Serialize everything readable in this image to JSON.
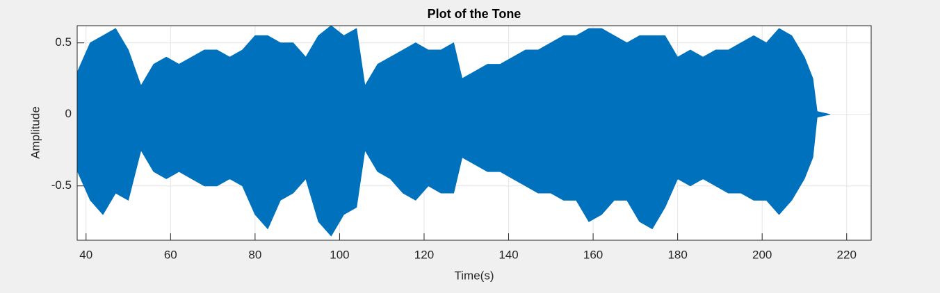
{
  "chart_data": {
    "type": "area",
    "title": "Plot of the Tone",
    "x_label": "Time(s)",
    "y_label": "Amplitude",
    "x": [
      38,
      41,
      44,
      47,
      50,
      53,
      56,
      59,
      62,
      65,
      68,
      71,
      74,
      77,
      80,
      83,
      86,
      89,
      92,
      95,
      98,
      101,
      104,
      106,
      109,
      112,
      115,
      118,
      121,
      124,
      127,
      129,
      132,
      135,
      138,
      141,
      144,
      147,
      150,
      153,
      156,
      159,
      162,
      165,
      168,
      171,
      174,
      177,
      180,
      183,
      186,
      189,
      192,
      195,
      198,
      201,
      204,
      207,
      210,
      212,
      213,
      216
    ],
    "series": [
      {
        "color": "#0072bd",
        "values": [
          0.3,
          0.5,
          0.55,
          0.6,
          0.45,
          0.2,
          0.35,
          0.4,
          0.35,
          0.4,
          0.45,
          0.45,
          0.4,
          0.45,
          0.55,
          0.55,
          0.5,
          0.5,
          0.4,
          0.55,
          0.62,
          0.55,
          0.6,
          0.2,
          0.35,
          0.4,
          0.45,
          0.5,
          0.45,
          0.45,
          0.5,
          0.25,
          0.3,
          0.35,
          0.35,
          0.4,
          0.45,
          0.45,
          0.5,
          0.55,
          0.55,
          0.6,
          0.6,
          0.55,
          0.5,
          0.55,
          0.55,
          0.55,
          0.4,
          0.45,
          0.4,
          0.45,
          0.45,
          0.5,
          0.55,
          0.5,
          0.6,
          0.55,
          0.4,
          0.25,
          0.02,
          0
        ]
      },
      {
        "color": "#0072bd",
        "values": [
          -0.4,
          -0.6,
          -0.7,
          -0.55,
          -0.6,
          -0.25,
          -0.4,
          -0.45,
          -0.4,
          -0.45,
          -0.5,
          -0.5,
          -0.45,
          -0.5,
          -0.7,
          -0.8,
          -0.6,
          -0.55,
          -0.45,
          -0.75,
          -0.85,
          -0.7,
          -0.65,
          -0.25,
          -0.4,
          -0.45,
          -0.55,
          -0.6,
          -0.5,
          -0.55,
          -0.55,
          -0.3,
          -0.35,
          -0.4,
          -0.4,
          -0.45,
          -0.5,
          -0.55,
          -0.55,
          -0.6,
          -0.6,
          -0.75,
          -0.7,
          -0.6,
          -0.6,
          -0.75,
          -0.8,
          -0.65,
          -0.45,
          -0.5,
          -0.45,
          -0.5,
          -0.55,
          -0.55,
          -0.6,
          -0.6,
          -0.7,
          -0.6,
          -0.45,
          -0.3,
          -0.02,
          0
        ]
      }
    ],
    "xlim": [
      37.9,
      225.8
    ],
    "ylim": [
      -0.88,
      0.62
    ],
    "xticks": [
      40,
      60,
      80,
      100,
      120,
      140,
      160,
      180,
      200,
      220
    ],
    "yticks": [
      -0.5,
      0,
      0.5
    ],
    "grid": true
  }
}
